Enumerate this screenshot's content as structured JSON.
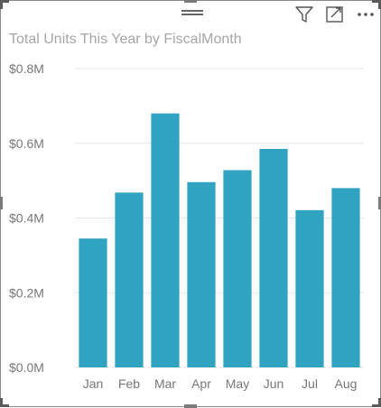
{
  "chart_data": {
    "type": "bar",
    "title": "Total Units This Year by FiscalMonth",
    "categories": [
      "Jan",
      "Feb",
      "Mar",
      "Apr",
      "May",
      "Jun",
      "Jul",
      "Aug"
    ],
    "values": [
      0.345,
      0.468,
      0.68,
      0.496,
      0.528,
      0.585,
      0.421,
      0.48
    ],
    "unit": "M",
    "yticks": [
      "$0.0M",
      "$0.2M",
      "$0.4M",
      "$0.6M",
      "$0.8M"
    ],
    "ylim": [
      0,
      0.8
    ],
    "bar_color": "#2FA3C0",
    "grid": true,
    "legend": "none"
  },
  "toolbar": {
    "icons": [
      "drag-handle-icon",
      "filter-icon",
      "focus-mode-icon",
      "more-options-icon"
    ]
  },
  "colors": {
    "border": "#8a8a8a",
    "title": "#a6a6a6",
    "gridline": "#e6e6e6"
  }
}
